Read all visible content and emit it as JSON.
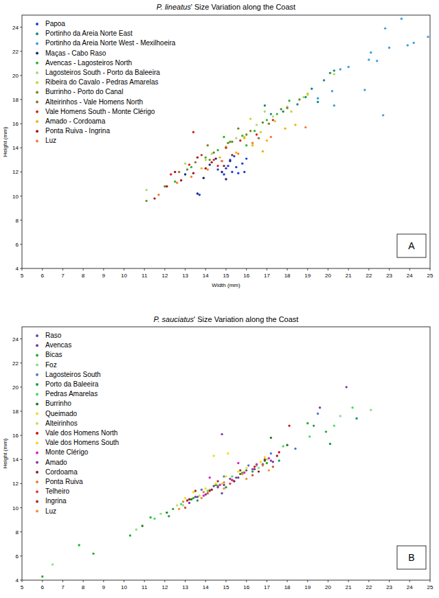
{
  "chart_data": [
    {
      "type": "scatter",
      "title": "P. lineatus' Size Variation along the Coast",
      "x_label": "Width (mm)",
      "y_label": "Height (mm)",
      "annotation": "A",
      "xlim": [
        5,
        25
      ],
      "ylim": [
        4,
        25
      ],
      "xticks": [
        5,
        6,
        7,
        8,
        9,
        10,
        11,
        12,
        13,
        14,
        15,
        16,
        17,
        18,
        19,
        20,
        21,
        22,
        23,
        24,
        25
      ],
      "yticks": [
        4,
        6,
        8,
        10,
        12,
        14,
        16,
        18,
        20,
        22,
        24
      ],
      "grid": false,
      "legend": "upper left",
      "marker": "circle",
      "series": [
        {
          "name": "Papoa",
          "color": "#1f3fd8",
          "x": [
            14.6,
            14.9,
            15.1,
            15.3,
            15.5,
            15.2,
            15.8,
            15.0,
            14.8,
            15.6,
            15.4,
            16.0,
            13.7,
            15.9
          ],
          "values": [
            12.2,
            11.8,
            12.5,
            12.0,
            12.4,
            13.0,
            12.7,
            12.3,
            12.9,
            11.9,
            13.3,
            13.1,
            10.1,
            12.0
          ]
        },
        {
          "name": "Portinho da Areia Norte East",
          "color": "#1a8a7a",
          "x": [
            17.2,
            18.5,
            19.2,
            19.8,
            20.1,
            18.9,
            17.8,
            19.5,
            20.3,
            16.9
          ],
          "values": [
            16.8,
            17.6,
            18.9,
            19.6,
            20.2,
            18.2,
            17.0,
            17.8,
            20.4,
            17.5
          ]
        },
        {
          "name": "Portinho da Areia Norte West - Mexilhoeira",
          "color": "#3aa0e0",
          "x": [
            19.5,
            20.2,
            20.6,
            21.0,
            21.8,
            22.1,
            22.4,
            22.8,
            23.0,
            23.6,
            23.9,
            24.2,
            24.9,
            22.0,
            20.3,
            22.7
          ],
          "values": [
            18.1,
            18.7,
            20.5,
            20.7,
            18.8,
            21.9,
            21.2,
            23.9,
            22.3,
            24.7,
            22.5,
            22.7,
            23.2,
            21.3,
            17.5,
            16.7
          ]
        },
        {
          "name": "Maças - Cabo Raso",
          "color": "#1a237e",
          "x": [
            13.0,
            13.6,
            14.2,
            14.8,
            15.2,
            13.9,
            14.5,
            15.0
          ],
          "values": [
            11.8,
            10.2,
            12.6,
            12.0,
            12.9,
            11.5,
            13.1,
            11.4
          ]
        },
        {
          "name": "Avencas - Lagosteiros North",
          "color": "#2db82d",
          "x": [
            12.5,
            13.3,
            14.0,
            14.6,
            15.2,
            15.8,
            16.4,
            17.0,
            17.5,
            18.1,
            16.0,
            14.9
          ],
          "values": [
            11.2,
            12.4,
            13.2,
            13.8,
            14.5,
            15.0,
            15.4,
            16.3,
            16.8,
            17.9,
            14.2,
            14.9
          ]
        },
        {
          "name": "Lagosteiros South - Porto da Baleeira",
          "color": "#a8dc70",
          "x": [
            13.0,
            14.3,
            15.5,
            16.5,
            17.3,
            18.0,
            18.8,
            19.0,
            11.1,
            16.9
          ],
          "values": [
            12.7,
            13.5,
            14.8,
            15.9,
            16.6,
            17.4,
            18.2,
            18.5,
            10.5,
            17.0
          ]
        },
        {
          "name": "Ribeira do Cavalo - Pedras Amarelas",
          "color": "#c4d62a",
          "x": [
            14.0,
            15.0,
            15.9,
            16.7,
            17.4,
            18.2,
            19.0,
            20.3,
            16.2
          ],
          "values": [
            13.0,
            14.1,
            14.9,
            15.3,
            16.2,
            17.0,
            18.4,
            20.1,
            16.4
          ]
        },
        {
          "name": "Burrinho - Porto do Canal",
          "color": "#6e8a1a",
          "x": [
            11.1,
            12.0,
            13.1,
            14.2,
            15.1,
            16.0,
            16.8,
            17.7,
            18.6,
            15.6
          ],
          "values": [
            9.6,
            10.8,
            12.2,
            13.0,
            14.4,
            15.1,
            16.1,
            17.2,
            18.0,
            15.6
          ]
        },
        {
          "name": "Alteirinhos - Vale Homens North",
          "color": "#8a7a20",
          "x": [
            12.7,
            13.5,
            14.4,
            15.3,
            16.2,
            17.1,
            18.0,
            14.1,
            16.6
          ],
          "values": [
            12.0,
            12.8,
            13.6,
            14.5,
            15.4,
            16.0,
            17.3,
            14.2,
            14.8
          ]
        },
        {
          "name": "Vale Homens South - Monte Clérigo",
          "color": "#e02020",
          "x": [
            12.3,
            13.2,
            13.8,
            14.4,
            15.0,
            15.7,
            16.5,
            17.3,
            13.4,
            14.6
          ],
          "values": [
            11.8,
            12.6,
            13.4,
            13.0,
            14.0,
            14.6,
            15.1,
            16.3,
            15.3,
            12.5
          ]
        },
        {
          "name": "Amado - Cordoama",
          "color": "#f0b400",
          "x": [
            13.8,
            14.7,
            15.5,
            16.3,
            17.0,
            17.9,
            16.8,
            15.9,
            18.4
          ],
          "values": [
            12.3,
            13.2,
            13.6,
            14.2,
            14.6,
            15.6,
            13.7,
            14.8,
            15.9
          ]
        },
        {
          "name": "Ponta Ruiva - Ingrina",
          "color": "#a01818",
          "x": [
            11.5,
            12.1,
            12.8,
            13.4,
            14.0,
            14.3,
            14.9,
            13.6,
            12.5,
            15.3
          ],
          "values": [
            9.8,
            10.8,
            11.3,
            11.9,
            12.3,
            12.8,
            12.5,
            13.2,
            12.0,
            13.4
          ]
        },
        {
          "name": "Luz",
          "color": "#f08030",
          "x": [
            11.7,
            12.6,
            13.3,
            14.1,
            14.8,
            15.6,
            16.3,
            17.2,
            18.9
          ],
          "values": [
            10.1,
            11.1,
            11.6,
            12.2,
            12.9,
            13.5,
            14.4,
            14.9,
            15.7
          ]
        }
      ]
    },
    {
      "type": "scatter",
      "title": "P. sauciatus' Size Variation along the Coast",
      "y_label": "Height (mm)",
      "annotation": "B",
      "xlim": [
        5,
        25
      ],
      "ylim": [
        4,
        25
      ],
      "xticks": [
        5,
        6,
        7,
        8,
        9,
        10,
        11,
        12,
        13,
        14,
        15,
        16,
        17,
        18,
        19,
        20,
        21,
        22,
        23,
        24,
        25
      ],
      "yticks": [
        4,
        6,
        8,
        10,
        12,
        14,
        16,
        18,
        20,
        22,
        24
      ],
      "grid": false,
      "legend": "upper left",
      "marker": "circle",
      "series": [
        {
          "name": "Raso",
          "color": "#6a4a9a",
          "x": [
            13.5,
            14.4,
            15.2,
            16.0,
            16.8,
            14.8
          ],
          "values": [
            10.9,
            11.8,
            12.4,
            13.1,
            13.6,
            11.2
          ]
        },
        {
          "name": "Avencas",
          "color": "#7a3aa0",
          "x": [
            13.2,
            14.0,
            14.9,
            15.6,
            16.4,
            17.3,
            19.6,
            20.9
          ],
          "values": [
            10.4,
            11.1,
            11.9,
            12.5,
            13.2,
            13.8,
            18.3,
            20.0
          ]
        },
        {
          "name": "Bicas",
          "color": "#22b022",
          "x": [
            6.0,
            7.8,
            8.5,
            10.3,
            11.3,
            12.4,
            13.4,
            14.6,
            15.8,
            17.0,
            19.0,
            19.9
          ],
          "values": [
            4.3,
            6.9,
            6.2,
            7.7,
            9.2,
            9.9,
            10.8,
            11.8,
            12.9,
            13.7,
            17.0,
            16.3
          ]
        },
        {
          "name": "Foz",
          "color": "#88e088",
          "x": [
            6.5,
            10.6,
            11.8,
            12.9,
            14.2,
            15.4,
            16.6,
            20.6,
            22.1
          ],
          "values": [
            5.3,
            8.2,
            9.5,
            10.2,
            11.5,
            12.2,
            13.3,
            17.6,
            18.1
          ]
        },
        {
          "name": "Lagosteiros South",
          "color": "#4a7ad0",
          "x": [
            13.8,
            14.9,
            16.1,
            17.2,
            19.5,
            18.4
          ],
          "values": [
            11.5,
            12.6,
            13.5,
            14.5,
            17.8,
            14.9
          ]
        },
        {
          "name": "Porto da Baleeira",
          "color": "#10a050",
          "x": [
            12.2,
            13.6,
            15.0,
            16.3,
            17.6,
            19.3,
            20.1,
            21.4
          ],
          "values": [
            9.3,
            10.6,
            11.7,
            13.0,
            13.9,
            16.8,
            15.3,
            17.4
          ]
        },
        {
          "name": "Pedras Amarelas",
          "color": "#40e060",
          "x": [
            11.5,
            12.8,
            14.1,
            15.3,
            16.5,
            17.8,
            19.1,
            20.3,
            21.2
          ],
          "values": [
            9.1,
            10.3,
            11.4,
            12.6,
            13.5,
            15.1,
            15.9,
            16.8,
            18.3
          ]
        },
        {
          "name": "Burrinho",
          "color": "#207a20",
          "x": [
            10.9,
            12.1,
            13.3,
            14.5,
            15.7,
            16.9,
            18.0,
            17.2
          ],
          "values": [
            8.5,
            9.6,
            10.7,
            11.9,
            12.8,
            13.9,
            15.2,
            15.8
          ]
        },
        {
          "name": "Queimado",
          "color": "#e8e020",
          "x": [
            13.0,
            14.0,
            15.0,
            16.0,
            16.9,
            14.4
          ],
          "values": [
            10.8,
            11.6,
            12.6,
            13.3,
            14.2,
            14.3
          ]
        },
        {
          "name": "Alteirinhos",
          "color": "#c0e060",
          "x": [
            12.6,
            13.7,
            14.8,
            15.9,
            17.0
          ],
          "values": [
            10.2,
            11.0,
            12.0,
            13.0,
            14.0
          ]
        },
        {
          "name": "Vale dos Homens North",
          "color": "#d01010",
          "x": [
            13.1,
            14.2,
            15.3,
            16.4,
            17.6,
            18.1
          ],
          "values": [
            10.6,
            11.4,
            12.3,
            13.4,
            14.6,
            16.8
          ]
        },
        {
          "name": "Vale dos Homens South",
          "color": "#f0e000",
          "x": [
            13.4,
            14.5,
            15.6,
            16.7,
            15.1
          ],
          "values": [
            11.3,
            12.0,
            13.0,
            13.8,
            14.5
          ]
        },
        {
          "name": "Monte Clérigo",
          "color": "#e020c0",
          "x": [
            13.9,
            14.7,
            15.3,
            15.9,
            16.5,
            17.1,
            14.2,
            15.6
          ],
          "values": [
            11.0,
            11.9,
            12.3,
            12.9,
            13.6,
            14.1,
            12.5,
            13.7
          ]
        },
        {
          "name": "Amado",
          "color": "#8040a0",
          "x": [
            13.6,
            14.6,
            15.5,
            16.3,
            17.2,
            14.8
          ],
          "values": [
            10.9,
            11.7,
            12.5,
            13.2,
            13.9,
            16.1
          ]
        },
        {
          "name": "Cordoama",
          "color": "#8a2030",
          "x": [
            13.2,
            14.3,
            15.4,
            16.6,
            17.5
          ],
          "values": [
            10.7,
            11.5,
            12.2,
            13.0,
            14.3
          ]
        },
        {
          "name": "Ponta Ruiva",
          "color": "#f08020",
          "x": [
            12.9,
            13.9,
            14.9,
            15.8,
            16.8
          ],
          "values": [
            10.5,
            11.3,
            12.1,
            12.8,
            13.5
          ]
        },
        {
          "name": "Telheiro",
          "color": "#e04040",
          "x": [
            13.0,
            14.1,
            15.2,
            16.3,
            17.3
          ],
          "values": [
            10.0,
            11.2,
            12.0,
            12.7,
            13.4
          ]
        },
        {
          "name": "Ingrina",
          "color": "#a03030",
          "x": [
            13.5,
            14.6,
            15.7,
            16.9
          ],
          "values": [
            11.4,
            12.2,
            13.1,
            14.0
          ]
        },
        {
          "name": "Luz",
          "color": "#f09030",
          "x": [
            12.7,
            13.8,
            14.9,
            16.0,
            17.1
          ],
          "values": [
            9.9,
            10.8,
            11.6,
            12.4,
            13.1
          ]
        }
      ]
    }
  ]
}
